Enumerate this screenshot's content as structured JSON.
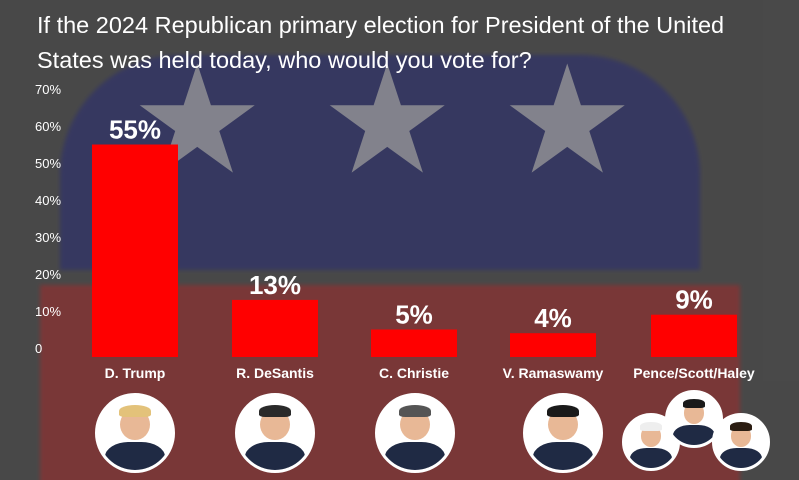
{
  "title": "If the 2024 Republican primary election for President of the United States was held today, who would you vote for?",
  "colors": {
    "bar": "#ff0000",
    "text": "#ffffff"
  },
  "chart_data": {
    "type": "bar",
    "title": "If the 2024 Republican primary election for President of the United States was held today, who would you vote for?",
    "categories": [
      "D. Trump",
      "R. DeSantis",
      "C. Christie",
      "V. Ramaswamy",
      "Pence/Scott/Haley"
    ],
    "values": [
      55,
      13,
      5,
      4,
      9
    ],
    "data_labels": [
      "55%",
      "13%",
      "5%",
      "4%",
      "9%"
    ],
    "yticks": [
      "0",
      "10%",
      "20%",
      "30%",
      "40%",
      "50%",
      "60%",
      "70%"
    ],
    "ylim": [
      0,
      70
    ],
    "grid": false,
    "legend": "none"
  },
  "avatars": [
    {
      "name": "trump-avatar-icon",
      "hair": "#e3c27a"
    },
    {
      "name": "desantis-avatar-icon",
      "hair": "#2a2a2a"
    },
    {
      "name": "christie-avatar-icon",
      "hair": "#555555"
    },
    {
      "name": "ramaswamy-avatar-icon",
      "hair": "#1a1a1a"
    },
    {
      "name": "pence-avatar-icon",
      "hair": "#eeeeee"
    },
    {
      "name": "scott-avatar-icon",
      "hair": "#1a1a1a"
    },
    {
      "name": "haley-avatar-icon",
      "hair": "#2b1d12"
    }
  ]
}
